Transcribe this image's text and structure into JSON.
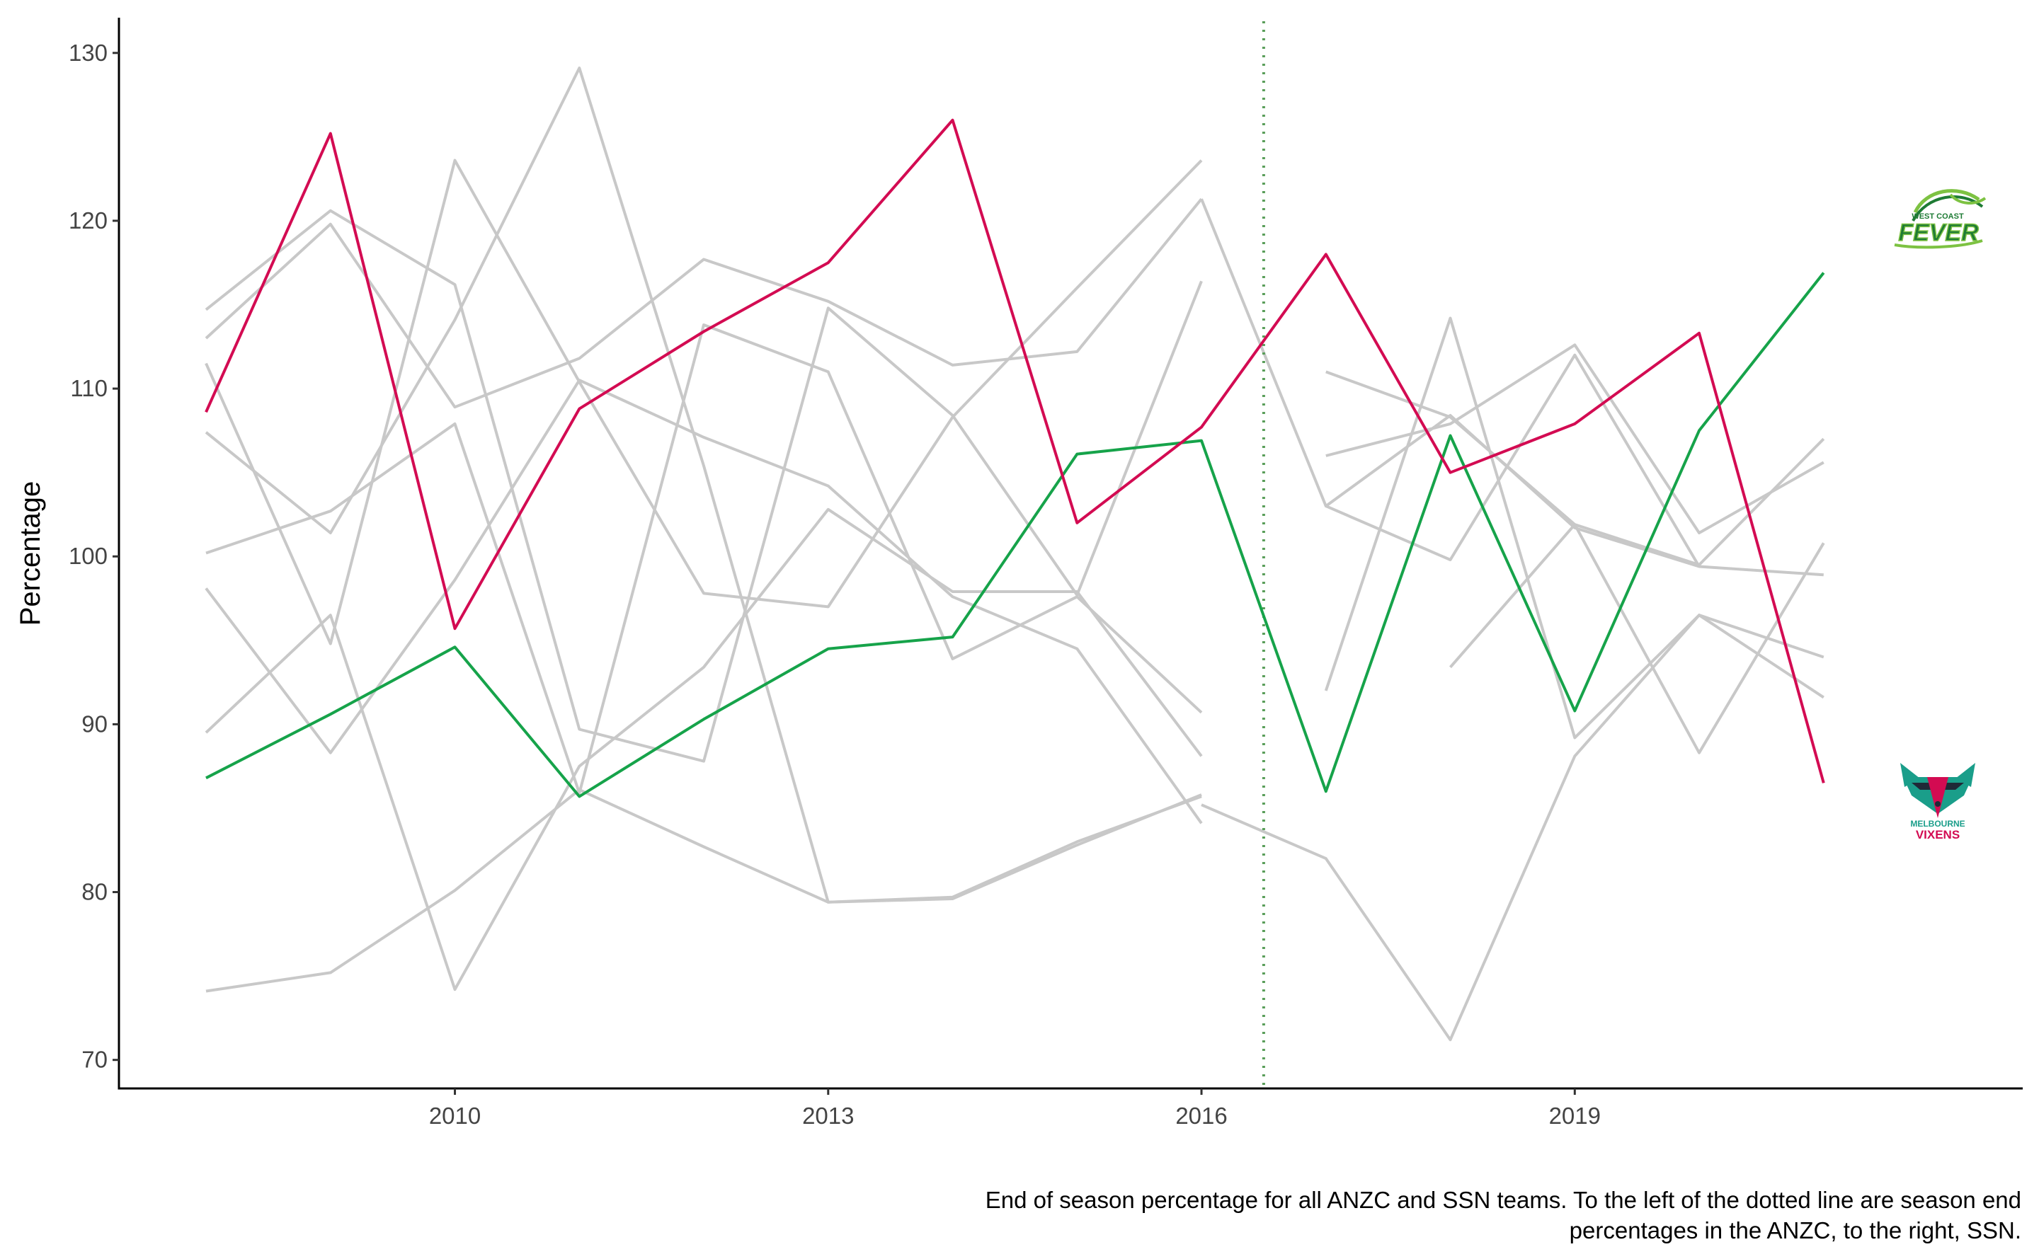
{
  "chart_data": {
    "type": "line",
    "title": "",
    "xlabel": "",
    "ylabel": "Percentage",
    "caption_lines": [
      "End of season percentage for all ANZC and SSN teams. To the left of the dotted line are season end",
      "percentages in the ANZC, to the right, SSN."
    ],
    "xlim": [
      2007.3,
      2022.6
    ],
    "ylim": [
      68.3,
      132.1
    ],
    "x_ticks": [
      2010,
      2013,
      2016,
      2019
    ],
    "y_ticks": [
      70,
      80,
      90,
      100,
      110,
      120,
      130
    ],
    "competition_divider_x": 2016.5,
    "grid": false,
    "legend": "none",
    "colors": {
      "background_series": "#c8c8c8",
      "highlight_fever": "#16a34a",
      "highlight_vixens": "#d30b52",
      "divider": "#5a9e5a"
    },
    "background_series": [
      {
        "x": [
          2008,
          2009,
          2010,
          2011,
          2012,
          2013,
          2014,
          2015,
          2016
        ],
        "values": [
          114.7,
          120.6,
          116.2,
          89.7,
          87.8,
          114.8,
          108.4,
          97.7,
          116.4
        ]
      },
      {
        "x": [
          2008,
          2009,
          2010,
          2011,
          2012,
          2013,
          2014,
          2015,
          2016
        ],
        "values": [
          113.0,
          119.8,
          108.9,
          111.8,
          117.7,
          115.2,
          111.4,
          112.2,
          121.3
        ]
      },
      {
        "x": [
          2008,
          2009,
          2010,
          2011,
          2012,
          2013,
          2014,
          2015,
          2016
        ],
        "values": [
          111.5,
          94.8,
          123.6,
          110.4,
          97.8,
          97.0,
          108.3,
          116.0,
          123.6
        ]
      },
      {
        "x": [
          2008,
          2009,
          2010,
          2011,
          2012,
          2013,
          2014,
          2015,
          2016
        ],
        "values": [
          107.4,
          101.4,
          114.1,
          129.1,
          105.4,
          79.4,
          79.7,
          83.0,
          85.7
        ]
      },
      {
        "x": [
          2008,
          2009,
          2010,
          2011,
          2012,
          2013,
          2014,
          2015,
          2016
        ],
        "values": [
          100.2,
          102.7,
          107.9,
          85.9,
          113.8,
          111.0,
          93.9,
          97.6,
          90.7
        ]
      },
      {
        "x": [
          2008,
          2009,
          2010,
          2011,
          2012,
          2013,
          2014,
          2015,
          2016
        ],
        "values": [
          98.1,
          88.3,
          98.6,
          110.5,
          107.1,
          104.2,
          97.6,
          94.5,
          84.1
        ]
      },
      {
        "x": [
          2008,
          2009,
          2010,
          2011,
          2012,
          2013,
          2014,
          2015,
          2016
        ],
        "values": [
          89.5,
          96.5,
          74.2,
          87.5,
          93.4,
          102.8,
          97.9,
          97.9,
          88.1
        ]
      },
      {
        "x": [
          2008,
          2009,
          2010,
          2011,
          2012,
          2013,
          2014,
          2015,
          2016
        ],
        "values": [
          74.1,
          75.2,
          80.1,
          86.1,
          82.7,
          79.4,
          79.6,
          82.8,
          85.8
        ]
      },
      {
        "x": [
          2016,
          2017,
          2018,
          2019,
          2020,
          2021
        ],
        "values": [
          121.3,
          103.0,
          108.4,
          101.7,
          99.4,
          98.9
        ]
      },
      {
        "x": [
          2017,
          2018,
          2019,
          2020,
          2021
        ],
        "values": [
          111.0,
          108.3,
          101.9,
          99.5,
          107.0
        ]
      },
      {
        "x": [
          2017,
          2018,
          2019,
          2020,
          2021
        ],
        "values": [
          106.0,
          107.9,
          112.6,
          101.4,
          105.6
        ]
      },
      {
        "x": [
          2017,
          2018,
          2019,
          2020,
          2021
        ],
        "values": [
          92.0,
          114.2,
          89.2,
          96.5,
          91.6
        ]
      },
      {
        "x": [
          2016,
          2017,
          2018,
          2019,
          2020,
          2021
        ],
        "values": [
          85.2,
          82.0,
          71.2,
          88.1,
          96.5,
          94.0
        ]
      },
      {
        "x": [
          2018,
          2019,
          2020,
          2021
        ],
        "values": [
          93.4,
          101.9,
          88.3,
          100.8
        ]
      },
      {
        "x": [
          2017,
          2018,
          2019,
          2020
        ],
        "values": [
          103.0,
          99.8,
          112.0,
          99.4
        ]
      }
    ],
    "series": [
      {
        "team": "fever",
        "color": "#16a34a",
        "x": [
          2008,
          2009,
          2010,
          2011,
          2012,
          2013,
          2014,
          2015,
          2016,
          2017,
          2018,
          2019,
          2020,
          2021
        ],
        "values": [
          86.8,
          90.6,
          94.6,
          85.7,
          90.3,
          94.5,
          95.2,
          106.1,
          106.9,
          86.0,
          107.2,
          90.8,
          107.5,
          116.9
        ]
      },
      {
        "team": "vixens",
        "color": "#d30b52",
        "x": [
          2008,
          2009,
          2010,
          2011,
          2012,
          2013,
          2014,
          2015,
          2016,
          2017,
          2018,
          2019,
          2020,
          2021
        ],
        "values": [
          108.6,
          125.2,
          95.7,
          108.8,
          113.4,
          117.5,
          126.0,
          102.0,
          107.7,
          118.0,
          105.0,
          107.9,
          113.3,
          86.5
        ]
      }
    ],
    "logos": {
      "fever": {
        "team": "fever",
        "icon": "west-coast-fever-logo-icon",
        "small_text": "WEST COAST",
        "big_text": "FEVER"
      },
      "vixens": {
        "team": "vixens",
        "icon": "melbourne-vixens-fox-logo-icon",
        "small_text": "MELBOURNE",
        "big_text": "VIXENS"
      }
    }
  }
}
